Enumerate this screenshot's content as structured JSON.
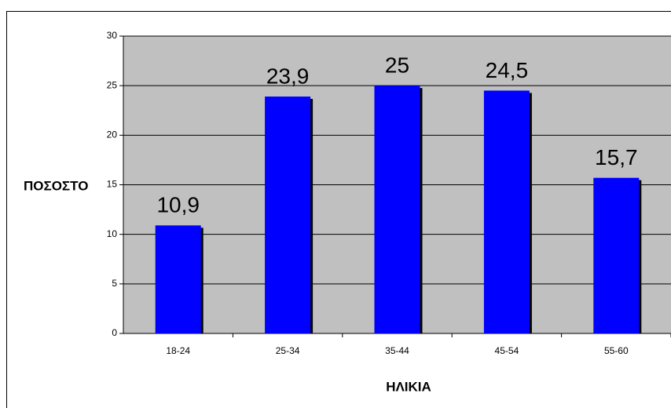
{
  "chart_data": {
    "type": "bar",
    "categories": [
      "18-24",
      "25-34",
      "35-44",
      "45-54",
      "55-60"
    ],
    "values": [
      10.9,
      23.9,
      25,
      24.5,
      15.7
    ],
    "value_labels": [
      "10,9",
      "23,9",
      "25",
      "24,5",
      "15,7"
    ],
    "color": "#0000ff",
    "plot_background": "#c0c0c0",
    "ylim": [
      0,
      30
    ],
    "yticks": [
      0,
      5,
      10,
      15,
      20,
      25,
      30
    ],
    "grid": true,
    "ylabel": "ΠΟΣΟΣΤΟ",
    "xlabel": "ΗΛΙΚΙΑ"
  }
}
